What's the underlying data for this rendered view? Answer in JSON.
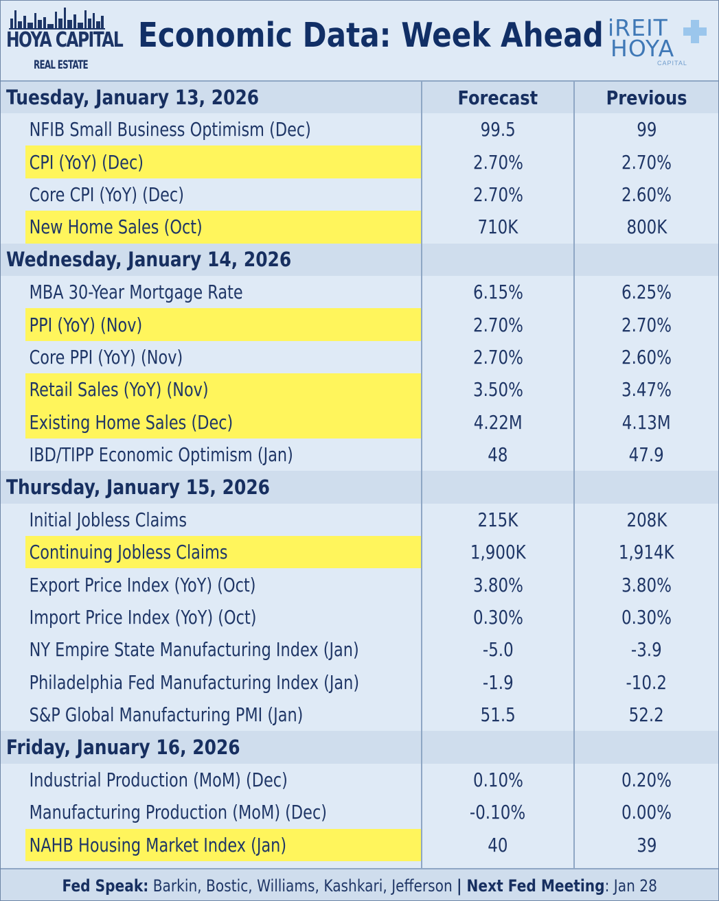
{
  "header": {
    "brand_left_main": "HOYA CAPITAL",
    "brand_left_sub": "REAL ESTATE",
    "title": "Economic Data: Week Ahead",
    "brand_right_top": "iREIT",
    "brand_right_bottom": "HOYA",
    "brand_right_caption": "CAPITAL"
  },
  "columns": {
    "forecast": "Forecast",
    "previous": "Previous"
  },
  "days": [
    {
      "label": "Tuesday, January 13, 2026",
      "items": [
        {
          "name": "NFIB Small Business Optimism (Dec)",
          "forecast": "99.5",
          "previous": "99",
          "highlight": false
        },
        {
          "name": "CPI (YoY) (Dec)",
          "forecast": "2.70%",
          "previous": "2.70%",
          "highlight": true
        },
        {
          "name": "Core CPI (YoY) (Dec)",
          "forecast": "2.70%",
          "previous": "2.60%",
          "highlight": false
        },
        {
          "name": "New Home Sales (Oct)",
          "forecast": "710K",
          "previous": "800K",
          "highlight": true
        }
      ]
    },
    {
      "label": "Wednesday, January 14, 2026",
      "items": [
        {
          "name": "MBA 30-Year Mortgage Rate",
          "forecast": "6.15%",
          "previous": "6.25%",
          "highlight": false
        },
        {
          "name": "PPI (YoY) (Nov)",
          "forecast": "2.70%",
          "previous": "2.70%",
          "highlight": true
        },
        {
          "name": "Core PPI (YoY) (Nov)",
          "forecast": "2.70%",
          "previous": "2.60%",
          "highlight": false
        },
        {
          "name": "Retail Sales (YoY) (Nov)",
          "forecast": "3.50%",
          "previous": "3.47%",
          "highlight": true
        },
        {
          "name": "Existing Home Sales (Dec)",
          "forecast": "4.22M",
          "previous": "4.13M",
          "highlight": true
        },
        {
          "name": "IBD/TIPP Economic Optimism (Jan)",
          "forecast": "48",
          "previous": "47.9",
          "highlight": false
        }
      ]
    },
    {
      "label": "Thursday, January 15, 2026",
      "items": [
        {
          "name": "Initial Jobless Claims",
          "forecast": "215K",
          "previous": "208K",
          "highlight": false
        },
        {
          "name": "Continuing Jobless Claims",
          "forecast": "1,900K",
          "previous": "1,914K",
          "highlight": true
        },
        {
          "name": "Export Price Index (YoY) (Oct)",
          "forecast": "3.80%",
          "previous": "3.80%",
          "highlight": false
        },
        {
          "name": "Import Price Index (YoY) (Oct)",
          "forecast": "0.30%",
          "previous": "0.30%",
          "highlight": false
        },
        {
          "name": "NY Empire State Manufacturing Index (Jan)",
          "forecast": "-5.0",
          "previous": "-3.9",
          "highlight": false
        },
        {
          "name": "Philadelphia Fed Manufacturing Index (Jan)",
          "forecast": "-1.9",
          "previous": "-10.2",
          "highlight": false
        },
        {
          "name": "S&P Global Manufacturing PMI (Jan)",
          "forecast": "51.5",
          "previous": "52.2",
          "highlight": false
        }
      ]
    },
    {
      "label": "Friday, January 16, 2026",
      "items": [
        {
          "name": "Industrial Production (MoM) (Dec)",
          "forecast": "0.10%",
          "previous": "0.20%",
          "highlight": false
        },
        {
          "name": "Manufacturing Production (MoM) (Dec)",
          "forecast": "-0.10%",
          "previous": "0.00%",
          "highlight": false
        },
        {
          "name": "NAHB Housing Market Index (Jan)",
          "forecast": "40",
          "previous": "39",
          "highlight": true
        }
      ]
    }
  ],
  "footer": {
    "fed_speak_label": "Fed Speak:",
    "fed_speak_value": " Barkin, Bostic, Williams, Kashkari, Jefferson ",
    "separator": "|",
    "next_meeting_label": " Next Fed Meeting",
    "next_meeting_value": ": Jan 28"
  },
  "colors": {
    "navy": "#172f60",
    "background": "#dfeaf6",
    "day_row": "#cfdded",
    "highlight": "#fff55c",
    "accent_blue": "#3f78b6"
  }
}
